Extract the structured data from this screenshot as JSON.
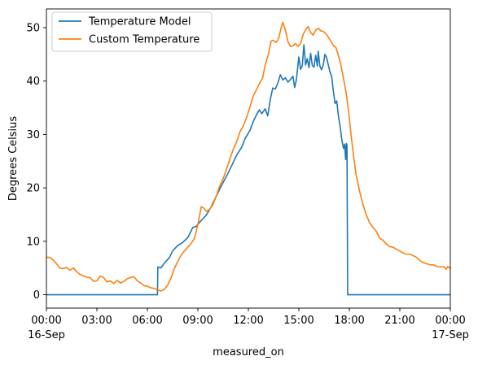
{
  "chart_data": {
    "type": "line",
    "xlabel": "measured_on",
    "ylabel": "Degrees Celsius",
    "x_unit": "hours",
    "xlim": [
      0,
      24
    ],
    "ylim": [
      -2.5,
      53.5
    ],
    "x_ticks": [
      {
        "value": 0,
        "label": "00:00",
        "sublabel": "16-Sep"
      },
      {
        "value": 3,
        "label": "03:00"
      },
      {
        "value": 6,
        "label": "06:00"
      },
      {
        "value": 9,
        "label": "09:00"
      },
      {
        "value": 12,
        "label": "12:00"
      },
      {
        "value": 15,
        "label": "15:00"
      },
      {
        "value": 18,
        "label": "18:00"
      },
      {
        "value": 21,
        "label": "21:00"
      },
      {
        "value": 24,
        "label": "00:00",
        "sublabel": "17-Sep"
      }
    ],
    "y_ticks": [
      0,
      10,
      20,
      30,
      40,
      50
    ],
    "grid": false,
    "legend_position": "top-left",
    "series": [
      {
        "name": "Temperature Model",
        "color": "#1f77b4",
        "points": [
          [
            0,
            0
          ],
          [
            6.6,
            0
          ],
          [
            6.62,
            5.2
          ],
          [
            6.8,
            5.0
          ],
          [
            7.0,
            5.9
          ],
          [
            7.3,
            6.9
          ],
          [
            7.5,
            8.2
          ],
          [
            7.8,
            9.2
          ],
          [
            8.1,
            9.8
          ],
          [
            8.4,
            10.7
          ],
          [
            8.7,
            12.6
          ],
          [
            8.9,
            12.8
          ],
          [
            9.2,
            13.9
          ],
          [
            9.5,
            14.9
          ],
          [
            9.8,
            16.5
          ],
          [
            10.1,
            18.5
          ],
          [
            10.4,
            20.4
          ],
          [
            10.7,
            22.2
          ],
          [
            11.0,
            24.1
          ],
          [
            11.3,
            26.1
          ],
          [
            11.6,
            27.6
          ],
          [
            11.8,
            29.2
          ],
          [
            12.1,
            30.8
          ],
          [
            12.3,
            32.5
          ],
          [
            12.5,
            33.8
          ],
          [
            12.65,
            34.6
          ],
          [
            12.8,
            33.9
          ],
          [
            13.0,
            34.8
          ],
          [
            13.15,
            33.5
          ],
          [
            13.3,
            36.5
          ],
          [
            13.45,
            38.7
          ],
          [
            13.6,
            38.5
          ],
          [
            13.75,
            39.6
          ],
          [
            13.9,
            41.2
          ],
          [
            14.05,
            40.2
          ],
          [
            14.2,
            40.6
          ],
          [
            14.35,
            39.8
          ],
          [
            14.5,
            40.3
          ],
          [
            14.65,
            40.9
          ],
          [
            14.75,
            38.8
          ],
          [
            14.85,
            40.2
          ],
          [
            15.0,
            44.5
          ],
          [
            15.1,
            42.2
          ],
          [
            15.2,
            42.8
          ],
          [
            15.3,
            46.8
          ],
          [
            15.4,
            43.0
          ],
          [
            15.5,
            44.2
          ],
          [
            15.6,
            42.5
          ],
          [
            15.7,
            45.2
          ],
          [
            15.8,
            42.9
          ],
          [
            15.9,
            42.6
          ],
          [
            16.0,
            44.8
          ],
          [
            16.1,
            42.8
          ],
          [
            16.15,
            45.6
          ],
          [
            16.25,
            42.8
          ],
          [
            16.35,
            42.1
          ],
          [
            16.45,
            43.0
          ],
          [
            16.55,
            45.0
          ],
          [
            16.65,
            44.4
          ],
          [
            16.75,
            43.0
          ],
          [
            16.85,
            41.7
          ],
          [
            16.95,
            40.9
          ],
          [
            17.05,
            38.1
          ],
          [
            17.15,
            35.8
          ],
          [
            17.25,
            36.3
          ],
          [
            17.35,
            33.5
          ],
          [
            17.45,
            31.6
          ],
          [
            17.55,
            29.1
          ],
          [
            17.65,
            27.4
          ],
          [
            17.72,
            28.2
          ],
          [
            17.78,
            25.3
          ],
          [
            17.82,
            28.3
          ],
          [
            17.86,
            28.0
          ],
          [
            17.9,
            0.0
          ],
          [
            24,
            0
          ]
        ]
      },
      {
        "name": "Custom Temperature",
        "color": "#ff7f0e",
        "points": [
          [
            0,
            7.0
          ],
          [
            0.2,
            7.0
          ],
          [
            0.4,
            6.5
          ],
          [
            0.6,
            5.8
          ],
          [
            0.8,
            5.0
          ],
          [
            1.0,
            4.9
          ],
          [
            1.2,
            5.1
          ],
          [
            1.4,
            4.6
          ],
          [
            1.6,
            5.0
          ],
          [
            1.8,
            4.3
          ],
          [
            2.0,
            3.8
          ],
          [
            2.2,
            3.5
          ],
          [
            2.4,
            3.3
          ],
          [
            2.6,
            3.2
          ],
          [
            2.8,
            2.5
          ],
          [
            3.0,
            2.6
          ],
          [
            3.2,
            3.5
          ],
          [
            3.4,
            3.2
          ],
          [
            3.6,
            2.4
          ],
          [
            3.8,
            2.6
          ],
          [
            4.0,
            2.1
          ],
          [
            4.2,
            2.7
          ],
          [
            4.4,
            2.2
          ],
          [
            4.6,
            2.5
          ],
          [
            4.8,
            3.0
          ],
          [
            5.0,
            3.2
          ],
          [
            5.2,
            3.4
          ],
          [
            5.4,
            2.6
          ],
          [
            5.6,
            2.2
          ],
          [
            5.8,
            1.7
          ],
          [
            6.0,
            1.6
          ],
          [
            6.2,
            1.3
          ],
          [
            6.4,
            1.2
          ],
          [
            6.6,
            0.9
          ],
          [
            6.8,
            0.7
          ],
          [
            7.0,
            1.0
          ],
          [
            7.2,
            1.8
          ],
          [
            7.4,
            3.1
          ],
          [
            7.6,
            4.9
          ],
          [
            7.8,
            6.2
          ],
          [
            8.0,
            7.4
          ],
          [
            8.2,
            8.2
          ],
          [
            8.4,
            8.9
          ],
          [
            8.6,
            9.6
          ],
          [
            8.8,
            10.6
          ],
          [
            9.0,
            13.1
          ],
          [
            9.2,
            16.5
          ],
          [
            9.35,
            16.2
          ],
          [
            9.5,
            15.6
          ],
          [
            9.7,
            16.0
          ],
          [
            9.9,
            16.9
          ],
          [
            10.1,
            18.5
          ],
          [
            10.3,
            20.4
          ],
          [
            10.5,
            21.7
          ],
          [
            10.7,
            23.5
          ],
          [
            10.9,
            25.4
          ],
          [
            11.1,
            27.2
          ],
          [
            11.3,
            28.6
          ],
          [
            11.5,
            30.5
          ],
          [
            11.7,
            31.6
          ],
          [
            11.9,
            33.2
          ],
          [
            12.1,
            35.2
          ],
          [
            12.3,
            37.3
          ],
          [
            12.5,
            38.5
          ],
          [
            12.7,
            39.8
          ],
          [
            12.85,
            40.6
          ],
          [
            13.0,
            43.0
          ],
          [
            13.2,
            45.1
          ],
          [
            13.35,
            47.5
          ],
          [
            13.5,
            47.6
          ],
          [
            13.65,
            47.2
          ],
          [
            13.8,
            48.0
          ],
          [
            13.95,
            50.0
          ],
          [
            14.05,
            51.0
          ],
          [
            14.2,
            49.5
          ],
          [
            14.35,
            47.4
          ],
          [
            14.5,
            46.5
          ],
          [
            14.65,
            46.6
          ],
          [
            14.8,
            47.0
          ],
          [
            14.95,
            46.5
          ],
          [
            15.1,
            47.0
          ],
          [
            15.25,
            48.7
          ],
          [
            15.4,
            49.6
          ],
          [
            15.55,
            50.2
          ],
          [
            15.7,
            49.1
          ],
          [
            15.85,
            48.6
          ],
          [
            16.0,
            49.5
          ],
          [
            16.15,
            49.9
          ],
          [
            16.3,
            49.4
          ],
          [
            16.45,
            49.3
          ],
          [
            16.6,
            48.9
          ],
          [
            16.75,
            48.2
          ],
          [
            16.9,
            47.5
          ],
          [
            17.05,
            46.6
          ],
          [
            17.2,
            46.3
          ],
          [
            17.35,
            44.8
          ],
          [
            17.5,
            43.0
          ],
          [
            17.65,
            40.5
          ],
          [
            17.8,
            38.0
          ],
          [
            17.95,
            34.5
          ],
          [
            18.1,
            30.0
          ],
          [
            18.25,
            26.0
          ],
          [
            18.4,
            22.5
          ],
          [
            18.6,
            19.5
          ],
          [
            18.8,
            17.0
          ],
          [
            19.0,
            15.0
          ],
          [
            19.2,
            13.5
          ],
          [
            19.4,
            12.6
          ],
          [
            19.6,
            11.9
          ],
          [
            19.8,
            10.6
          ],
          [
            20.0,
            10.2
          ],
          [
            20.2,
            9.5
          ],
          [
            20.4,
            9.0
          ],
          [
            20.6,
            8.9
          ],
          [
            20.8,
            8.5
          ],
          [
            21.0,
            8.2
          ],
          [
            21.2,
            7.8
          ],
          [
            21.4,
            7.6
          ],
          [
            21.6,
            7.6
          ],
          [
            21.8,
            7.3
          ],
          [
            22.0,
            7.0
          ],
          [
            22.2,
            6.4
          ],
          [
            22.4,
            6.0
          ],
          [
            22.6,
            5.8
          ],
          [
            22.8,
            5.6
          ],
          [
            23.0,
            5.6
          ],
          [
            23.2,
            5.3
          ],
          [
            23.4,
            5.2
          ],
          [
            23.6,
            5.3
          ],
          [
            23.75,
            4.8
          ],
          [
            23.85,
            5.3
          ],
          [
            24,
            4.9
          ]
        ]
      }
    ]
  }
}
